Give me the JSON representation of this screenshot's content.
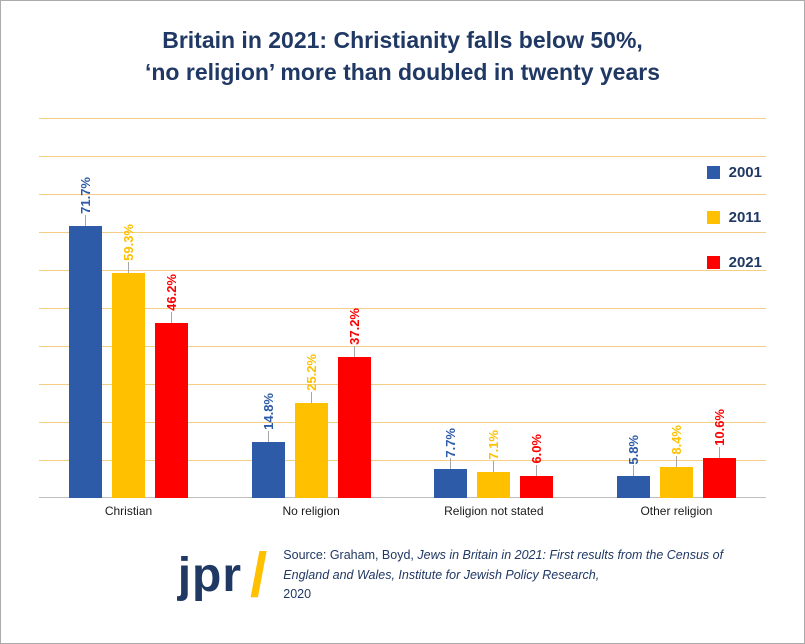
{
  "title": {
    "line1": "Britain in 2021: Christianity falls below 50%,",
    "line2": "‘no religion’ more than doubled in twenty years"
  },
  "chart_data": {
    "type": "bar",
    "title": "Britain in 2021: Christianity falls below 50%, ‘no religion’ more than doubled in twenty years",
    "categories": [
      "Christian",
      "No religion",
      "Religion not stated",
      "Other religion"
    ],
    "series": [
      {
        "name": "2001",
        "color": "#2E5BA8",
        "values": [
          71.7,
          14.8,
          7.7,
          5.8
        ],
        "labels": [
          "71.7%",
          "14.8%",
          "7.7%",
          "5.8%"
        ]
      },
      {
        "name": "2011",
        "color": "#FFC000",
        "values": [
          59.3,
          25.2,
          7.1,
          8.4
        ],
        "labels": [
          "59.3%",
          "25.2%",
          "7.1%",
          "8.4%"
        ]
      },
      {
        "name": "2021",
        "color": "#FF0000",
        "values": [
          46.2,
          37.2,
          6.0,
          10.6
        ],
        "labels": [
          "46.2%",
          "37.2%",
          "6.0%",
          "10.6%"
        ]
      }
    ],
    "xlabel": "",
    "ylabel": "",
    "ylim": [
      0,
      100
    ],
    "gridline_step": 10,
    "grid": true,
    "legend_position": "top-right"
  },
  "colors": {
    "title_text": "#203864",
    "gridline": "#F3CE84",
    "axis_line": "#BFBFBF",
    "legend_text": "#203864",
    "logo_text": "#203864",
    "logo_slash": "#FFC000",
    "source_text": "#203864"
  },
  "footer": {
    "logo_text": "jpr",
    "logo_slash": "/",
    "source_prefix": "Source: Graham, Boyd, ",
    "source_italic": "Jews in Britain in 2021: First results from the Census of England and Wales, Institute for Jewish Policy Research,",
    "source_year": "2020"
  }
}
